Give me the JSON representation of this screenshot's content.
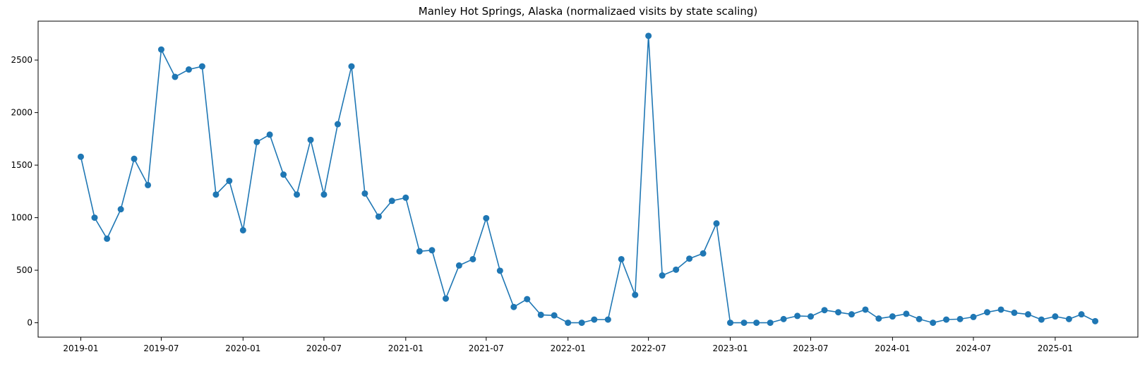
{
  "chart_data": {
    "type": "line",
    "title": "Manley Hot Springs, Alaska (normalizaed visits by state scaling)",
    "xlabel": "",
    "ylabel": "",
    "grid": false,
    "legend": "none",
    "color": "#1f77b4",
    "xlim": [
      "2018-09-27",
      "2025-07-06"
    ],
    "ylim": [
      -137,
      2870
    ],
    "x_ticks": [
      "2019-01",
      "2019-07",
      "2020-01",
      "2020-07",
      "2021-01",
      "2021-07",
      "2022-01",
      "2022-07",
      "2023-01",
      "2023-07",
      "2024-01",
      "2024-07",
      "2025-01"
    ],
    "y_ticks": [
      0,
      500,
      1000,
      1500,
      2000,
      2500
    ],
    "series": [
      {
        "x": [
          "2019-01-01",
          "2019-02-01",
          "2019-03-01",
          "2019-04-01",
          "2019-05-01",
          "2019-06-01",
          "2019-07-01",
          "2019-08-01",
          "2019-09-01",
          "2019-10-01",
          "2019-11-01",
          "2019-12-01",
          "2020-01-01",
          "2020-02-01",
          "2020-03-01",
          "2020-04-01",
          "2020-05-01",
          "2020-06-01",
          "2020-07-01",
          "2020-08-01",
          "2020-09-01",
          "2020-10-01",
          "2020-11-01",
          "2020-12-01",
          "2021-01-01",
          "2021-02-01",
          "2021-03-01",
          "2021-04-01",
          "2021-05-01",
          "2021-06-01",
          "2021-07-01",
          "2021-08-01",
          "2021-09-01",
          "2021-10-01",
          "2021-11-01",
          "2021-12-01",
          "2022-01-01",
          "2022-02-01",
          "2022-03-01",
          "2022-04-01",
          "2022-05-01",
          "2022-06-01",
          "2022-07-01",
          "2022-08-01",
          "2022-09-01",
          "2022-10-01",
          "2022-11-01",
          "2022-12-01",
          "2023-01-01",
          "2023-02-01",
          "2023-03-01",
          "2023-04-01",
          "2023-05-01",
          "2023-06-01",
          "2023-07-01",
          "2023-08-01",
          "2023-09-01",
          "2023-10-01",
          "2023-11-01",
          "2023-12-01",
          "2024-01-01",
          "2024-02-01",
          "2024-03-01",
          "2024-04-01",
          "2024-05-01",
          "2024-06-01",
          "2024-07-01",
          "2024-08-01",
          "2024-09-01",
          "2024-10-01",
          "2024-11-01",
          "2024-12-01",
          "2025-01-01",
          "2025-02-01",
          "2025-03-01",
          "2025-04-01"
        ],
        "y": [
          1580,
          1000,
          800,
          1080,
          1560,
          1310,
          2600,
          2340,
          2410,
          2440,
          1220,
          1350,
          880,
          1720,
          1790,
          1410,
          1220,
          1740,
          1220,
          1890,
          2440,
          1230,
          1010,
          1160,
          1190,
          680,
          690,
          230,
          545,
          605,
          995,
          495,
          150,
          225,
          75,
          70,
          0,
          0,
          30,
          30,
          605,
          265,
          2730,
          450,
          505,
          610,
          660,
          945,
          0,
          0,
          0,
          0,
          35,
          65,
          60,
          120,
          100,
          80,
          125,
          40,
          60,
          85,
          35,
          0,
          30,
          35,
          55,
          100,
          125,
          95,
          80,
          30,
          60,
          35,
          80,
          15
        ]
      }
    ]
  }
}
